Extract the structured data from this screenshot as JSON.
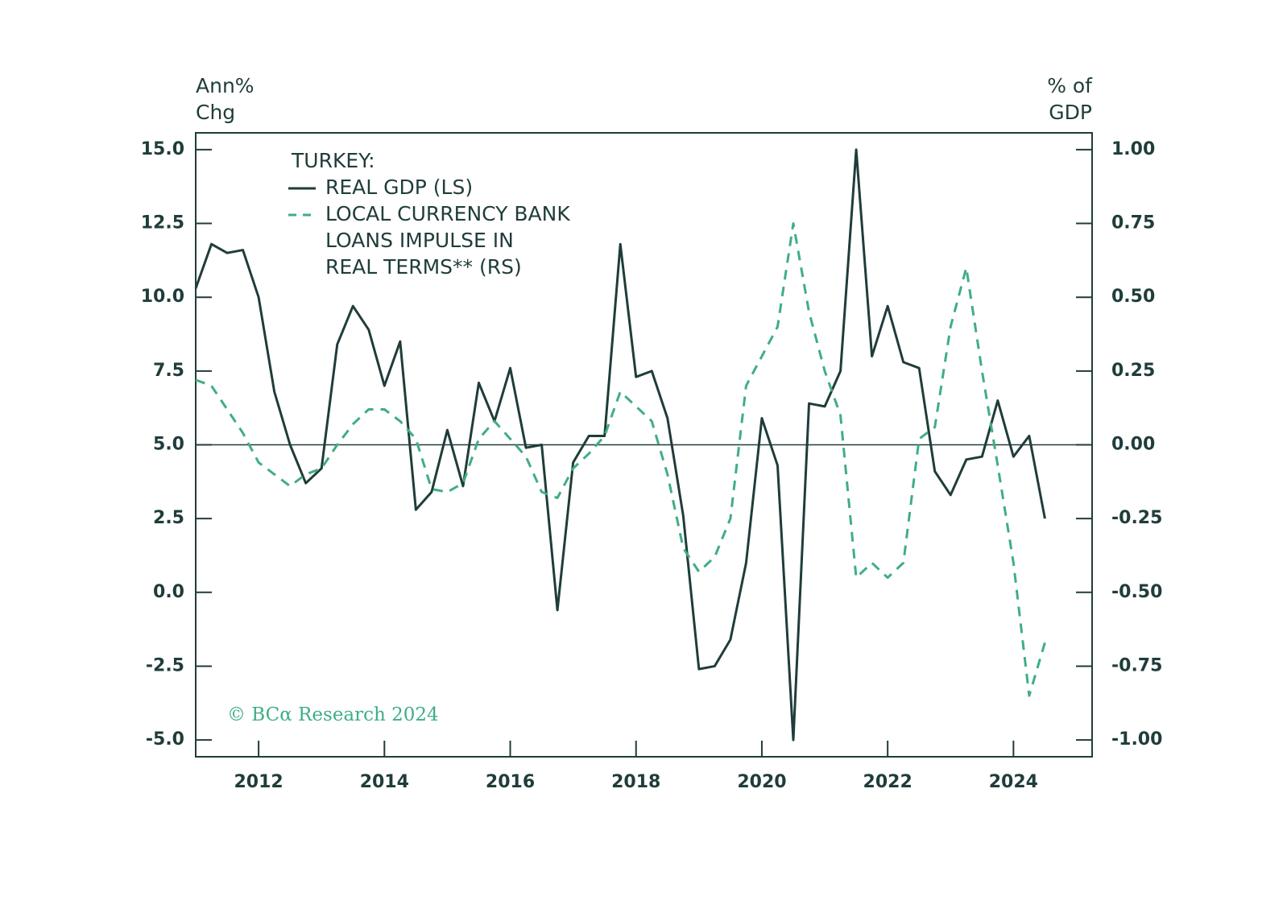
{
  "chart_data": {
    "type": "line",
    "title": "TURKEY:",
    "ylabel": [
      "Ann%",
      "Chg"
    ],
    "y2label": [
      "% of",
      "GDP"
    ],
    "annotation": "© BCα Research 2024",
    "x": [
      2011.0,
      2011.25,
      2011.5,
      2011.75,
      2012.0,
      2012.25,
      2012.5,
      2012.75,
      2013.0,
      2013.25,
      2013.5,
      2013.75,
      2014.0,
      2014.25,
      2014.5,
      2014.75,
      2015.0,
      2015.25,
      2015.5,
      2015.75,
      2016.0,
      2016.25,
      2016.5,
      2016.75,
      2017.0,
      2017.25,
      2017.5,
      2017.75,
      2018.0,
      2018.25,
      2018.5,
      2018.75,
      2019.0,
      2019.25,
      2019.5,
      2019.75,
      2020.0,
      2020.25,
      2020.5,
      2020.75,
      2021.0,
      2021.25,
      2021.5,
      2021.75,
      2022.0,
      2022.25,
      2022.5,
      2022.75,
      2023.0,
      2023.25,
      2023.5,
      2023.75,
      2024.0,
      2024.25,
      2024.5
    ],
    "series": [
      {
        "name": "REAL GDP (LS)",
        "color": "#1f3d3a",
        "dash": false,
        "values": [
          10.3,
          11.8,
          11.5,
          11.6,
          10.0,
          6.8,
          5.0,
          3.7,
          4.2,
          8.4,
          9.7,
          8.9,
          7.0,
          8.5,
          2.8,
          3.4,
          5.5,
          3.6,
          7.1,
          5.8,
          7.6,
          4.9,
          5.0,
          -0.6,
          4.4,
          5.3,
          5.3,
          11.8,
          7.3,
          7.5,
          5.9,
          2.6,
          -2.6,
          -2.5,
          -1.6,
          1.0,
          5.9,
          4.3,
          -5.0,
          6.4,
          6.3,
          7.5,
          15.0,
          8.0,
          9.7,
          7.8,
          7.6,
          4.1,
          3.3,
          4.5,
          4.6,
          6.5,
          4.6,
          5.3,
          2.5
        ]
      },
      {
        "name": "LOCAL CURRENCY BANK LOANS IMPULSE IN REAL TERMS** (RS)",
        "name_lines": [
          "LOCAL CURRENCY BANK",
          "LOANS IMPULSE IN",
          "REAL TERMS** (RS)"
        ],
        "color": "#3fae84",
        "dash": true,
        "axis": "y2",
        "values": [
          0.22,
          0.2,
          0.12,
          0.04,
          -0.06,
          -0.1,
          -0.14,
          -0.1,
          -0.08,
          0.0,
          0.07,
          0.12,
          0.12,
          0.08,
          0.02,
          -0.15,
          -0.16,
          -0.13,
          0.02,
          0.08,
          0.02,
          -0.04,
          -0.16,
          -0.18,
          -0.08,
          -0.03,
          0.03,
          0.18,
          0.13,
          0.08,
          -0.1,
          -0.35,
          -0.43,
          -0.38,
          -0.25,
          0.2,
          0.3,
          0.4,
          0.75,
          0.45,
          0.25,
          0.1,
          -0.45,
          -0.4,
          -0.45,
          -0.4,
          0.02,
          0.06,
          0.4,
          0.6,
          0.25,
          -0.07,
          -0.4,
          -0.85,
          -0.67
        ]
      }
    ],
    "xlim": [
      2011.0,
      2025.25
    ],
    "xticks": [
      2012,
      2014,
      2016,
      2018,
      2020,
      2022,
      2024
    ],
    "ylim": [
      -5.57,
      15.57
    ],
    "yticks": [
      {
        "value": -5,
        "label": "-5.0"
      },
      {
        "value": -2.5,
        "label": "-2.5"
      },
      {
        "value": 0,
        "label": "0.0"
      },
      2.5,
      {
        "value": 5,
        "label": "5.0"
      },
      7.5,
      {
        "value": 10,
        "label": "10.0"
      },
      12.5,
      {
        "value": 15,
        "label": "15.0"
      }
    ],
    "y2lim": [
      -1.057,
      1.057
    ],
    "y2ticks": [
      {
        "value": -1,
        "label": "-1.00"
      },
      {
        "value": -0.75,
        "label": "-0.75"
      },
      {
        "value": -0.5,
        "label": "-0.50"
      },
      {
        "value": -0.25,
        "label": "-0.25"
      },
      {
        "value": 0,
        "label": "0.00"
      },
      {
        "value": 0.25,
        "label": "0.25"
      },
      {
        "value": 0.5,
        "label": "0.50"
      },
      {
        "value": 0.75,
        "label": "0.75"
      },
      {
        "value": 1,
        "label": "1.00"
      }
    ],
    "y2_zero_line": true
  }
}
